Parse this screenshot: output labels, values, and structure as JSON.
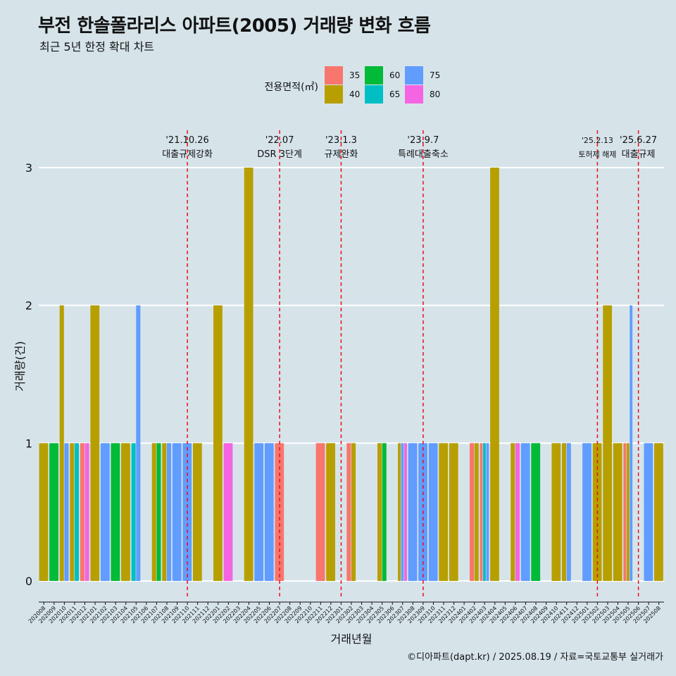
{
  "title": "부전 한솔폴라리스 아파트(2005) 거래량 변화 흐름",
  "subtitle": "최근 5년 한정 확대 차트",
  "caption": "©디아파트(dapt.kr) / 2025.08.19 / 자료=국토교통부 실거래가",
  "colors": {
    "background": "#d6e4ea",
    "grid": "#ffffff",
    "event_line": "#e8111b",
    "35": "#f8766d",
    "40": "#b79f00",
    "60": "#00ba38",
    "65": "#00bfc4",
    "75": "#619cff",
    "80": "#f564e3"
  },
  "chart_data": {
    "type": "bar",
    "stacking": "dodge",
    "title": "부전 한솔폴라리스 아파트(2005) 거래량 변화 흐름",
    "subtitle": "최근 5년 한정 확대 차트",
    "xlabel": "거래년월",
    "ylabel": "거래량(건)",
    "ylim": [
      0,
      3
    ],
    "yticks": [
      0,
      1,
      2,
      3
    ],
    "grid": true,
    "legend": {
      "title": "전용면적(㎡)",
      "position": "top",
      "entries": [
        "35",
        "40",
        "60",
        "65",
        "75",
        "80"
      ]
    },
    "categories": [
      "202008",
      "202009",
      "202010",
      "202011",
      "202012",
      "202101",
      "202102",
      "202103",
      "202104",
      "202105",
      "202106",
      "202107",
      "202108",
      "202109",
      "202110",
      "202111",
      "202112",
      "202201",
      "202202",
      "202203",
      "202204",
      "202205",
      "202206",
      "202207",
      "202208",
      "202209",
      "202210",
      "202211",
      "202212",
      "202301",
      "202302",
      "202303",
      "202304",
      "202305",
      "202306",
      "202307",
      "202308",
      "202309",
      "202310",
      "202311",
      "202312",
      "202401",
      "202402",
      "202403",
      "202404",
      "202405",
      "202406",
      "202407",
      "202408",
      "202409",
      "202410",
      "202411",
      "202412",
      "202501",
      "202502",
      "202503",
      "202504",
      "202505",
      "202506",
      "202507",
      "202508"
    ],
    "series": [
      {
        "name": "35",
        "values": [
          0,
          0,
          0,
          0,
          1,
          0,
          0,
          0,
          0,
          0,
          0,
          0,
          0,
          0,
          0,
          0,
          0,
          0,
          0,
          0,
          0,
          0,
          0,
          1,
          0,
          0,
          0,
          1,
          0,
          0,
          1,
          0,
          0,
          0,
          0,
          0,
          0,
          0,
          0,
          0,
          0,
          0,
          1,
          1,
          0,
          0,
          0,
          0,
          0,
          0,
          0,
          0,
          0,
          0,
          0,
          0,
          0,
          1,
          0,
          0,
          0
        ]
      },
      {
        "name": "40",
        "values": [
          1,
          0,
          2,
          1,
          0,
          2,
          0,
          0,
          1,
          0,
          0,
          1,
          1,
          0,
          0,
          1,
          0,
          2,
          0,
          0,
          3,
          0,
          0,
          0,
          0,
          0,
          0,
          0,
          1,
          0,
          1,
          0,
          0,
          1,
          0,
          1,
          0,
          0,
          0,
          1,
          1,
          0,
          1,
          0,
          3,
          0,
          1,
          0,
          0,
          0,
          1,
          1,
          0,
          0,
          1,
          2,
          1,
          1,
          0,
          0,
          1
        ]
      },
      {
        "name": "60",
        "values": [
          0,
          1,
          0,
          0,
          0,
          0,
          0,
          1,
          0,
          0,
          0,
          1,
          0,
          0,
          0,
          0,
          0,
          0,
          0,
          0,
          0,
          0,
          0,
          0,
          0,
          0,
          0,
          0,
          0,
          0,
          0,
          0,
          0,
          1,
          0,
          0,
          0,
          0,
          0,
          0,
          0,
          0,
          0,
          0,
          0,
          0,
          0,
          0,
          1,
          0,
          0,
          0,
          0,
          0,
          0,
          0,
          0,
          0,
          0,
          0,
          0
        ]
      },
      {
        "name": "65",
        "values": [
          0,
          0,
          0,
          1,
          0,
          0,
          0,
          0,
          0,
          1,
          0,
          0,
          0,
          0,
          0,
          0,
          0,
          0,
          0,
          0,
          0,
          0,
          0,
          0,
          0,
          0,
          0,
          0,
          0,
          0,
          0,
          0,
          0,
          0,
          0,
          0,
          0,
          0,
          0,
          0,
          0,
          0,
          0,
          1,
          0,
          0,
          0,
          0,
          0,
          0,
          0,
          0,
          0,
          0,
          0,
          0,
          0,
          0,
          0,
          0,
          0
        ]
      },
      {
        "name": "75",
        "values": [
          0,
          0,
          1,
          0,
          0,
          0,
          1,
          0,
          0,
          2,
          0,
          0,
          1,
          1,
          1,
          0,
          0,
          0,
          0,
          0,
          0,
          1,
          1,
          0,
          0,
          0,
          0,
          0,
          0,
          0,
          0,
          0,
          0,
          0,
          0,
          1,
          1,
          1,
          1,
          0,
          0,
          0,
          0,
          1,
          0,
          0,
          0,
          1,
          0,
          0,
          0,
          1,
          0,
          1,
          0,
          0,
          0,
          2,
          0,
          1,
          0
        ]
      },
      {
        "name": "80",
        "values": [
          0,
          0,
          0,
          0,
          1,
          0,
          0,
          0,
          0,
          0,
          0,
          0,
          0,
          0,
          0,
          0,
          0,
          0,
          1,
          0,
          0,
          0,
          0,
          0,
          0,
          0,
          0,
          0,
          0,
          0,
          0,
          0,
          0,
          0,
          0,
          1,
          0,
          0,
          0,
          0,
          0,
          0,
          0,
          0,
          0,
          0,
          1,
          0,
          0,
          0,
          0,
          0,
          0,
          0,
          0,
          0,
          0,
          0,
          0,
          0,
          0
        ]
      }
    ],
    "annotations": [
      {
        "x": "202110",
        "date": "'21.10.26",
        "label": "대출규제강화"
      },
      {
        "x": "202207",
        "date": "'22.07",
        "label": "DSR 3단계"
      },
      {
        "x": "202301",
        "date": "'23.1.3",
        "label": "규제완화"
      },
      {
        "x": "202309",
        "date": "'23.9.7",
        "label": "특례대출축소"
      },
      {
        "x": "202502",
        "date": "'25.2.13",
        "label": "토허제 해제"
      },
      {
        "x": "202506",
        "date": "'25.6.27",
        "label": "대출규제"
      }
    ]
  }
}
